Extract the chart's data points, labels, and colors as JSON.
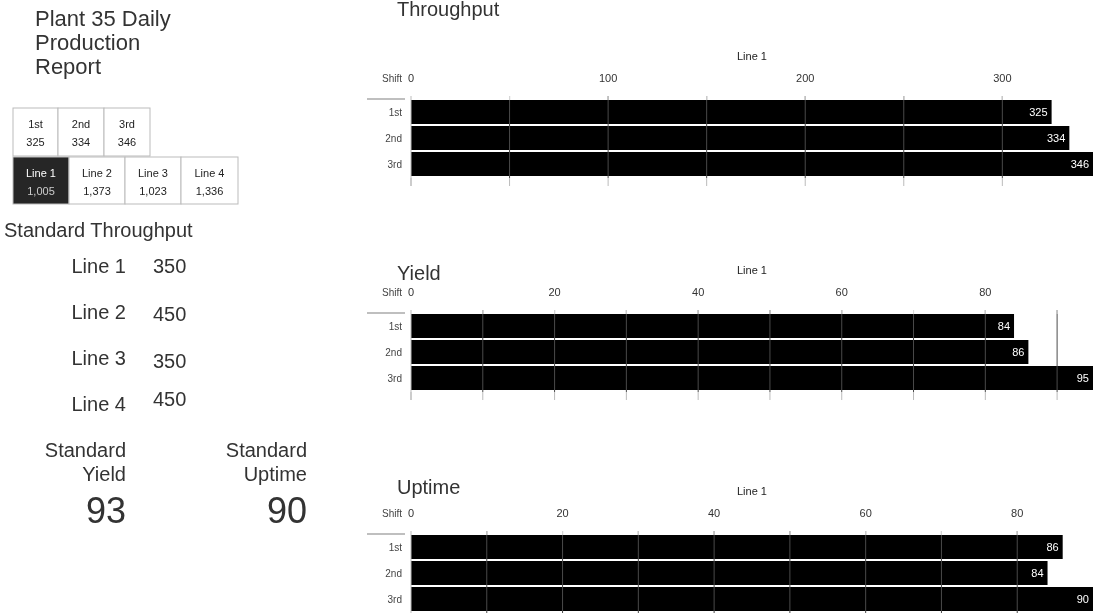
{
  "chart_data": [
    {
      "type": "other",
      "title": "Plant 35 Daily Production Report",
      "annotations": [
        "1st",
        "325",
        "2nd",
        "334",
        "3rd",
        "346",
        "Line 1",
        "1,005",
        "Line 2",
        "1,373",
        "Line 3",
        "1,023",
        "Line 4",
        "1,336",
        "Standard Throughput",
        "Line 1",
        "350",
        "Line 2",
        "450",
        "Line 3",
        "350",
        "Line 4",
        "450",
        "Standard Yield",
        "93",
        "Standard Uptime",
        "90"
      ]
    },
    {
      "type": "bar",
      "orientation": "horizontal",
      "title": "Throughput",
      "xlabel": "Line 1",
      "ylabel": "Shift",
      "categories": [
        "1st",
        "2nd",
        "3rd"
      ],
      "values": [
        325,
        334,
        346
      ],
      "color": "#000000",
      "xlim": [
        0,
        346
      ],
      "xticks": [
        0,
        {
          "value": 50,
          "label": null
        },
        100,
        {
          "value": 150,
          "label": null
        },
        200,
        {
          "value": 250,
          "label": null
        },
        300
      ],
      "grid": "x",
      "data_labels": true
    },
    {
      "type": "bar",
      "orientation": "horizontal",
      "title": "Yield",
      "xlabel": "Line 1",
      "ylabel": "Shift",
      "categories": [
        "1st",
        "2nd",
        "3rd"
      ],
      "values": [
        84,
        86,
        95
      ],
      "color": "#000000",
      "xlim": [
        0,
        95
      ],
      "xticks": [
        0,
        {
          "value": 10,
          "label": null
        },
        20,
        {
          "value": 30,
          "label": null
        },
        40,
        {
          "value": 50,
          "label": null
        },
        60,
        {
          "value": 70,
          "label": null
        },
        80,
        {
          "value": 90,
          "label": null
        }
      ],
      "grid": "x",
      "data_labels": true
    },
    {
      "type": "bar",
      "orientation": "horizontal",
      "title": "Uptime",
      "xlabel": "Line 1",
      "ylabel": "Shift",
      "categories": [
        "1st",
        "2nd",
        "3rd"
      ],
      "values": [
        86,
        84,
        90
      ],
      "color": "#000000",
      "xlim": [
        0,
        90
      ],
      "xticks": [
        0,
        {
          "value": 10,
          "label": null
        },
        20,
        {
          "value": 30,
          "label": null
        },
        40,
        {
          "value": 50,
          "label": null
        },
        60,
        {
          "value": 70,
          "label": null
        },
        80
      ],
      "grid": "x",
      "data_labels": true
    }
  ]
}
